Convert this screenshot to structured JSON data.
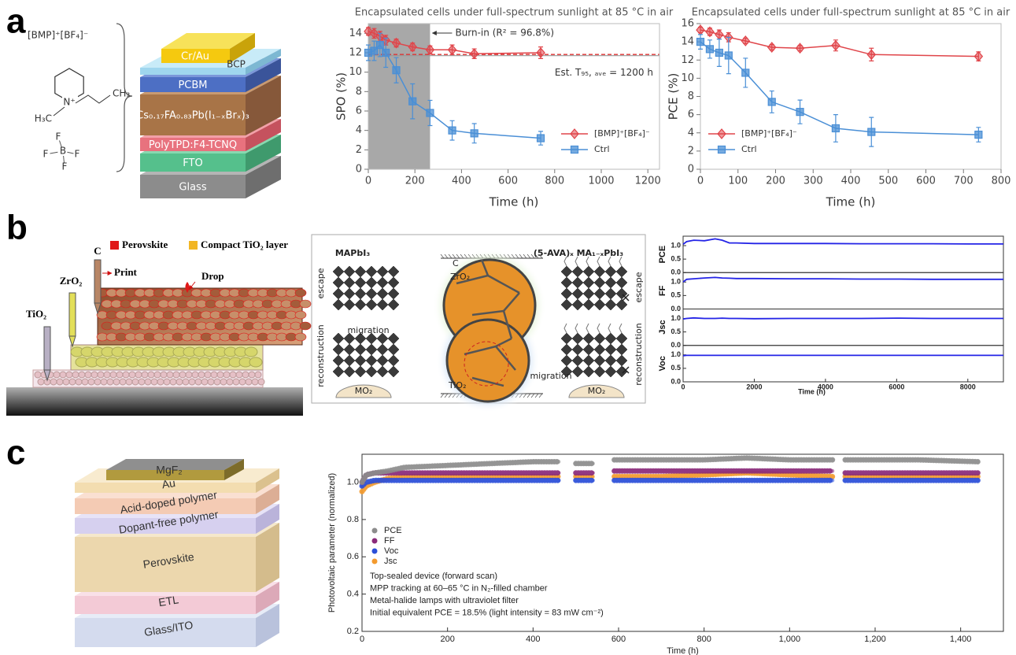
{
  "panel_labels": [
    "a",
    "b",
    "c"
  ],
  "diagrams": {
    "a_molecule": {
      "formula": "[BMP]⁺[BF₄]⁻",
      "cation": "N⁺",
      "h3c": "H₃C",
      "ch3": "CH₃",
      "boron": "B",
      "fluorine": [
        "F",
        "F",
        "F",
        "F"
      ]
    },
    "a_stack": [
      "Cr/Au",
      "BCP",
      "PCBM",
      "Cs₀.₁₇FA₀.₈₃Pb(I₁₋ₓBrₓ)₃",
      "PolyTPD:F4-TCNQ",
      "FTO",
      "Glass"
    ],
    "b_print": {
      "legend": [
        "Perovskite",
        "Compact TiO₂ layer"
      ],
      "nozzles": [
        "TiO₂",
        "ZrO₂",
        "C"
      ],
      "print": "Print",
      "drop": "Drop"
    },
    "b_mechanism": {
      "left_title": "MAPbI₃",
      "right_title": "(5-AVA)ₓ MA₁₋ₓPbI₃",
      "carbon": "C",
      "zro2": "ZrO₂",
      "tio2": "TiO₂",
      "escape": [
        "escape",
        "escape"
      ],
      "reconstruction": [
        "reconstruction",
        "reconstruction"
      ],
      "migration": [
        "migration",
        "migration"
      ],
      "substrate": [
        "MO₂",
        "MO₂"
      ]
    },
    "c_stack": [
      "MgF₂",
      "Au",
      "Acid-doped polymer",
      "Dopant-free polymer",
      "Perovskite",
      "ETL",
      "Glass/ITO"
    ]
  },
  "chart_data": [
    {
      "type": "line",
      "title": "Encapsulated cells under full-spectrum sunlight at 85 °C in air",
      "xlabel": "Time (h)",
      "ylabel": "SPO (%)",
      "x": [
        0,
        25,
        50,
        75,
        120,
        190,
        265,
        360,
        455,
        740
      ],
      "xlim": [
        0,
        1250
      ],
      "xticks": [
        0,
        200,
        400,
        600,
        800,
        1000,
        1200
      ],
      "ylim": [
        0,
        15
      ],
      "yticks": [
        0,
        2,
        4,
        6,
        8,
        10,
        12,
        14
      ],
      "series": [
        {
          "name": "[BMP]⁺[BF₄]⁻",
          "color": "#e0454a",
          "marker": "diamond",
          "values": [
            14.2,
            14.0,
            13.7,
            13.3,
            13.0,
            12.6,
            12.3,
            12.3,
            11.9,
            12.0
          ],
          "errors": [
            0.4,
            0.5,
            0.5,
            0.5,
            0.4,
            0.4,
            0.4,
            0.5,
            0.5,
            0.6
          ]
        },
        {
          "name": "Ctrl",
          "color": "#4a8fd6",
          "marker": "square",
          "values": [
            12.0,
            12.2,
            12.8,
            12.0,
            10.2,
            7.0,
            5.8,
            4.0,
            3.7,
            3.2
          ],
          "errors": [
            0.8,
            1.0,
            1.2,
            1.5,
            1.3,
            1.8,
            1.3,
            1.0,
            1.0,
            0.7
          ]
        }
      ],
      "legend": "lower right",
      "burn_in": {
        "label": "Burn-in (R² = 96.8%)",
        "x_range": [
          0,
          265
        ]
      },
      "t95": {
        "label": "Est. T₉₅, ₐᵥₑ = 1200 h",
        "level": 11.7
      }
    },
    {
      "type": "line",
      "title": "Encapsulated cells under full-spectrum sunlight at 85 °C in air",
      "xlabel": "Time (h)",
      "ylabel": "PCE (%)",
      "x": [
        0,
        25,
        50,
        75,
        120,
        190,
        265,
        360,
        455,
        740
      ],
      "xlim": [
        0,
        800
      ],
      "xticks": [
        0,
        100,
        200,
        300,
        400,
        500,
        600,
        700,
        800
      ],
      "ylim": [
        0,
        16
      ],
      "yticks": [
        0,
        2,
        4,
        6,
        8,
        10,
        12,
        14,
        16
      ],
      "series": [
        {
          "name": "[BMP]⁺[BF₄]⁻",
          "color": "#e0454a",
          "marker": "diamond",
          "values": [
            15.3,
            15.1,
            14.8,
            14.5,
            14.1,
            13.4,
            13.3,
            13.6,
            12.6,
            12.4
          ],
          "errors": [
            0.3,
            0.4,
            0.5,
            0.5,
            0.3,
            0.3,
            0.3,
            0.6,
            0.7,
            0.5
          ]
        },
        {
          "name": "Ctrl",
          "color": "#4a8fd6",
          "marker": "square",
          "values": [
            14.0,
            13.2,
            12.8,
            12.5,
            10.6,
            7.4,
            6.3,
            4.5,
            4.1,
            3.8
          ],
          "errors": [
            0.8,
            1.0,
            1.5,
            2.0,
            1.6,
            1.2,
            1.3,
            1.5,
            1.6,
            0.8
          ]
        }
      ],
      "legend": "lower left"
    },
    {
      "type": "stacked-lines",
      "xlabel": "Time (h)",
      "color": "#2424e6",
      "x": [
        0,
        100,
        300,
        600,
        900,
        1100,
        1300,
        1500,
        2000,
        3000,
        4000,
        5000,
        6000,
        7000,
        8000,
        9000
      ],
      "xlim": [
        0,
        9000
      ],
      "xticks": [
        0,
        2000,
        4000,
        6000,
        8000
      ],
      "ylim": [
        0,
        1.35
      ],
      "yticks": [
        {
          "value": 0,
          "label": "0.0"
        },
        {
          "value": 0.5,
          "label": "0.5"
        },
        {
          "value": 1,
          "label": "1.0"
        }
      ],
      "panels": [
        {
          "ylabel": "PCE",
          "values": [
            1.05,
            1.15,
            1.2,
            1.18,
            1.25,
            1.2,
            1.1,
            1.1,
            1.08,
            1.08,
            1.08,
            1.07,
            1.07,
            1.07,
            1.06,
            1.06
          ]
        },
        {
          "ylabel": "FF",
          "values": [
            1.0,
            1.1,
            1.12,
            1.15,
            1.17,
            1.15,
            1.14,
            1.13,
            1.13,
            1.12,
            1.12,
            1.11,
            1.11,
            1.1,
            1.1,
            1.1
          ]
        },
        {
          "ylabel": "Jsc",
          "values": [
            0.98,
            1.0,
            1.02,
            1.0,
            1.0,
            1.01,
            1.0,
            1.0,
            0.99,
            1.0,
            1.0,
            1.0,
            1.01,
            1.0,
            1.0,
            1.0
          ]
        },
        {
          "ylabel": "Voc",
          "values": [
            0.97,
            0.98,
            0.98,
            0.98,
            0.98,
            0.98,
            0.98,
            0.98,
            0.98,
            0.98,
            0.98,
            0.98,
            0.98,
            0.98,
            0.98,
            0.98
          ]
        }
      ]
    },
    {
      "type": "scatter",
      "xlabel": "Time (h)",
      "ylabel": "Photovoltaic parameter (normalized)",
      "x": [
        0,
        10,
        30,
        60,
        100,
        200,
        300,
        400,
        460,
        480,
        500,
        520,
        540,
        560,
        590,
        700,
        800,
        900,
        1000,
        1100,
        1115,
        1130,
        1200,
        1300,
        1440
      ],
      "xlim": [
        0,
        1500
      ],
      "xticks": [
        0,
        200,
        400,
        600,
        800,
        {
          "value": 1000,
          "label": "1,000"
        },
        {
          "value": 1200,
          "label": "1,200"
        },
        {
          "value": 1400,
          "label": "1,400"
        }
      ],
      "ylim": [
        0.2,
        1.15
      ],
      "yticks": [
        0.2,
        0.4,
        0.6,
        0.8,
        {
          "value": 1,
          "label": "1.0"
        }
      ],
      "series": [
        {
          "name": "PCE",
          "color": "#8c8c8c",
          "values": [
            1.0,
            1.04,
            1.05,
            1.06,
            1.08,
            1.09,
            1.1,
            1.11,
            1.11,
            null,
            1.1,
            1.1,
            1.1,
            null,
            1.12,
            1.12,
            1.12,
            1.13,
            1.12,
            1.12,
            null,
            1.12,
            1.12,
            1.12,
            1.11
          ]
        },
        {
          "name": "FF",
          "color": "#8a2a7a",
          "values": [
            1.0,
            1.04,
            1.05,
            1.05,
            1.05,
            1.05,
            1.05,
            1.05,
            1.05,
            null,
            1.05,
            1.05,
            1.05,
            null,
            1.06,
            1.06,
            1.06,
            1.06,
            1.06,
            1.06,
            null,
            1.05,
            1.05,
            1.05,
            1.05
          ]
        },
        {
          "name": "Voc",
          "color": "#2b4fd8",
          "values": [
            0.98,
            1.0,
            1.01,
            1.01,
            1.01,
            1.01,
            1.01,
            1.01,
            1.01,
            null,
            1.01,
            1.01,
            1.01,
            null,
            1.01,
            1.01,
            1.01,
            1.01,
            1.01,
            1.01,
            null,
            1.01,
            1.01,
            1.01,
            1.01
          ]
        },
        {
          "name": "Jsc",
          "color": "#f39a2e",
          "values": [
            0.95,
            0.98,
            1.0,
            1.02,
            1.03,
            1.03,
            1.03,
            1.03,
            1.03,
            null,
            1.03,
            1.03,
            1.03,
            null,
            1.03,
            1.03,
            1.04,
            1.05,
            1.04,
            1.03,
            null,
            1.03,
            1.03,
            1.03,
            1.03
          ]
        }
      ],
      "legend": "center left",
      "notes": [
        "Top-sealed device (forward scan)",
        "MPP tracking at 60–65 °C in N₂-filled chamber",
        "Metal-halide lamps with ultraviolet filter",
        "Initial equivalent PCE = 18.5% (light intensity = 83 mW cm⁻²)"
      ]
    }
  ]
}
